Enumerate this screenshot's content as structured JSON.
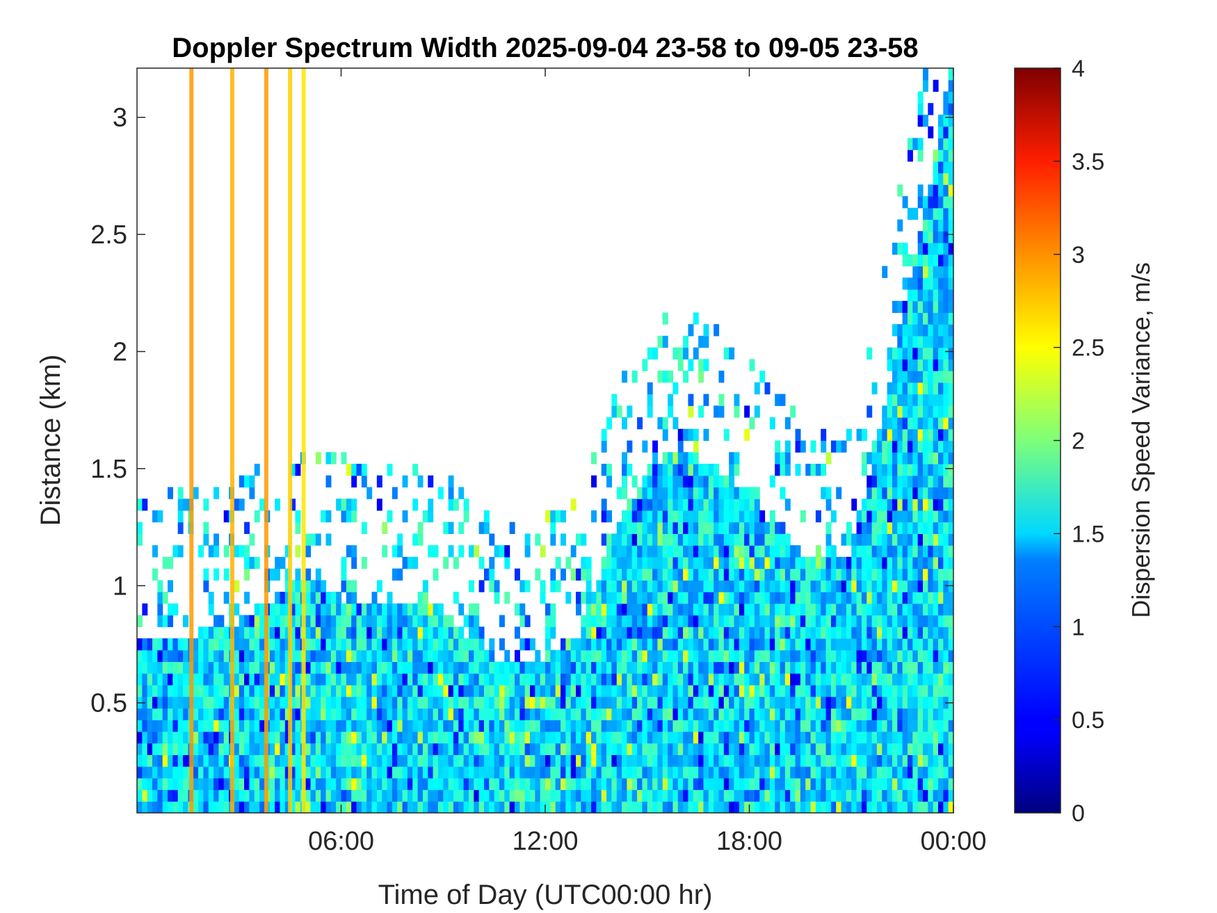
{
  "chart_data": {
    "type": "heatmap",
    "title": "Doppler Spectrum Width 2025-09-04 23-58 to 09-05 23-58",
    "xlabel": "Time of Day (UTC00:00 hr)",
    "ylabel": "Distance (km)",
    "colorbar_label": "Dispersion Speed Variance, m/s",
    "colormap": "jet",
    "x_ticks": [
      "06:00",
      "12:00",
      "18:00",
      "00:00"
    ],
    "x_tick_hours": [
      6,
      12,
      18,
      24
    ],
    "xlim_hours": [
      0,
      24
    ],
    "y_ticks": [
      "0.5",
      "1",
      "1.5",
      "2",
      "2.5",
      "3"
    ],
    "y_tick_values": [
      0.5,
      1,
      1.5,
      2,
      2.5,
      3
    ],
    "ylim": [
      0.03,
      3.21
    ],
    "clim": [
      0,
      4
    ],
    "colorbar_ticks": [
      "0",
      "0.5",
      "1",
      "1.5",
      "2",
      "2.5",
      "3",
      "3.5",
      "4"
    ],
    "colorbar_tick_values": [
      0,
      0.5,
      1,
      1.5,
      2,
      2.5,
      3,
      3.5,
      4
    ],
    "signal_top_km": [
      [
        0,
        0.8
      ],
      [
        1,
        0.8
      ],
      [
        2,
        0.8
      ],
      [
        3,
        0.85
      ],
      [
        4,
        0.95
      ],
      [
        5,
        1.05
      ],
      [
        6,
        0.95
      ],
      [
        7,
        0.9
      ],
      [
        8,
        0.95
      ],
      [
        9,
        0.9
      ],
      [
        10,
        0.75
      ],
      [
        11,
        0.65
      ],
      [
        12,
        0.7
      ],
      [
        13,
        0.8
      ],
      [
        14,
        1.2
      ],
      [
        15,
        1.5
      ],
      [
        16,
        1.6
      ],
      [
        17,
        1.5
      ],
      [
        18,
        1.4
      ],
      [
        19,
        1.2
      ],
      [
        20,
        1.1
      ],
      [
        21,
        1.1
      ],
      [
        22,
        1.8
      ],
      [
        23,
        2.5
      ],
      [
        24,
        3.2
      ]
    ],
    "background_value": 1.4,
    "streaks": [
      {
        "hour": 1.6,
        "value": 2.9
      },
      {
        "hour": 2.8,
        "value": 2.8
      },
      {
        "hour": 3.8,
        "value": 2.9
      },
      {
        "hour": 4.5,
        "value": 2.7
      },
      {
        "hour": 4.9,
        "value": 2.6
      }
    ]
  }
}
